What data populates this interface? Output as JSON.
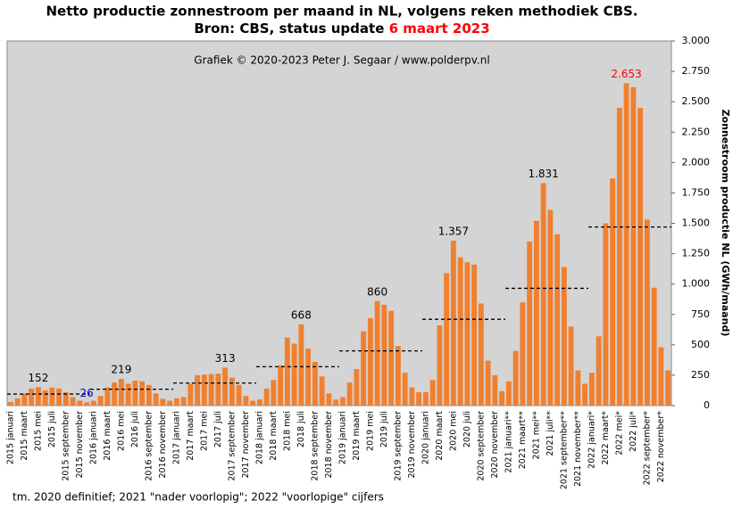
{
  "chart_data": {
    "type": "bar",
    "title": "Netto productie zonnestroom per maand in NL, volgens reken methodiek CBS.",
    "title_line2": "Bron: CBS, status update ",
    "title_date": "6 maart 2023",
    "title_date_color": "#ff0000",
    "subtitle": "Grafiek  © 2020-2023  Peter J. Segaar / www.polderpv.nl",
    "ylabel": "Zonnestroom productie NL (GWh/maand)",
    "footnote": "tm. 2020 definitief;  2021 \"nader voorlopig\";  2022 \"voorlopige\"  cijfers",
    "color": "#f08030",
    "background": "#d4d4d4",
    "categories": [
      "2015 januari",
      null,
      "2015 maart",
      null,
      "2015 mei",
      null,
      "2015 juli",
      null,
      "2015 september",
      null,
      "2015 november",
      null,
      "2016 januari",
      null,
      "2016 maart",
      null,
      "2016 mei",
      null,
      "2016 juli",
      null,
      "2016 september",
      null,
      "2016 november",
      null,
      "2017 januari",
      null,
      "2017 maart",
      null,
      "2017 mei",
      null,
      "2017 juli",
      null,
      "2017 september",
      null,
      "2017 november",
      null,
      "2018 januari",
      null,
      "2018 maart",
      null,
      "2018 mei",
      null,
      "2018 juli",
      null,
      "2018 september",
      null,
      "2018 november",
      null,
      "2019 januari",
      null,
      "2019 maart",
      null,
      "2019 mei",
      null,
      "2019 juli",
      null,
      "2019 september",
      null,
      "2019 november",
      null,
      "2020 januari",
      null,
      "2020 maart",
      null,
      "2020 mei",
      null,
      "2020 juli",
      null,
      "2020 september",
      null,
      "2020 november",
      null,
      "2021 januari**",
      null,
      "2021 maart**",
      null,
      "2021 mei**",
      null,
      "2021 juli**",
      null,
      "2021 september**",
      null,
      "2021 november**",
      null,
      "2022 januari*",
      null,
      "2022 maart*",
      null,
      "2022 mei*",
      null,
      "2022 juli*",
      null,
      "2022 september*",
      null,
      "2022 november*",
      null
    ],
    "values": [
      30,
      60,
      100,
      140,
      152,
      125,
      148,
      140,
      110,
      70,
      40,
      26,
      40,
      80,
      150,
      190,
      219,
      180,
      205,
      200,
      170,
      100,
      55,
      40,
      60,
      70,
      180,
      250,
      255,
      260,
      262,
      313,
      230,
      170,
      80,
      40,
      50,
      140,
      210,
      330,
      560,
      510,
      668,
      470,
      360,
      240,
      100,
      50,
      70,
      190,
      300,
      610,
      720,
      860,
      830,
      780,
      490,
      270,
      150,
      110,
      110,
      210,
      660,
      1090,
      1357,
      1220,
      1180,
      1160,
      840,
      370,
      250,
      120,
      200,
      450,
      850,
      1350,
      1520,
      1831,
      1610,
      1410,
      1140,
      650,
      290,
      180,
      270,
      570,
      1500,
      1870,
      2450,
      2653,
      2620,
      2450,
      1530,
      970,
      480,
      290
    ],
    "value_labels": [
      null,
      null,
      null,
      null,
      "152",
      null,
      null,
      null,
      null,
      null,
      null,
      "26",
      null,
      null,
      null,
      null,
      "219",
      null,
      null,
      null,
      null,
      null,
      null,
      null,
      null,
      null,
      null,
      null,
      null,
      null,
      null,
      "313",
      null,
      null,
      null,
      null,
      null,
      null,
      null,
      null,
      null,
      null,
      "668",
      null,
      null,
      null,
      null,
      null,
      null,
      null,
      null,
      null,
      null,
      "860",
      null,
      null,
      null,
      null,
      null,
      null,
      null,
      null,
      null,
      null,
      "1.357",
      null,
      null,
      null,
      null,
      null,
      null,
      null,
      null,
      null,
      null,
      null,
      null,
      "1.831",
      null,
      null,
      null,
      null,
      null,
      null,
      null,
      null,
      null,
      null,
      null,
      "2.653",
      null,
      null,
      null,
      null,
      null,
      null
    ],
    "value_label_colors": {
      "11": "#0000cc",
      "89": "#ff0000"
    },
    "averages": [
      95,
      135,
      185,
      320,
      450,
      710,
      965,
      1470
    ],
    "ylim": [
      0,
      3000
    ],
    "yticks": [
      0,
      250,
      500,
      750,
      {
        "value": 1000,
        "label": "1.000"
      },
      {
        "value": 1250,
        "label": "1.250"
      },
      {
        "value": 1500,
        "label": "1.500"
      },
      {
        "value": 1750,
        "label": "1.750"
      },
      {
        "value": 2000,
        "label": "2.000"
      },
      {
        "value": 2250,
        "label": "2.250"
      },
      {
        "value": 2500,
        "label": "2.500"
      },
      {
        "value": 2750,
        "label": "2.750"
      },
      {
        "value": 3000,
        "label": "3.000"
      }
    ],
    "grid": false
  }
}
